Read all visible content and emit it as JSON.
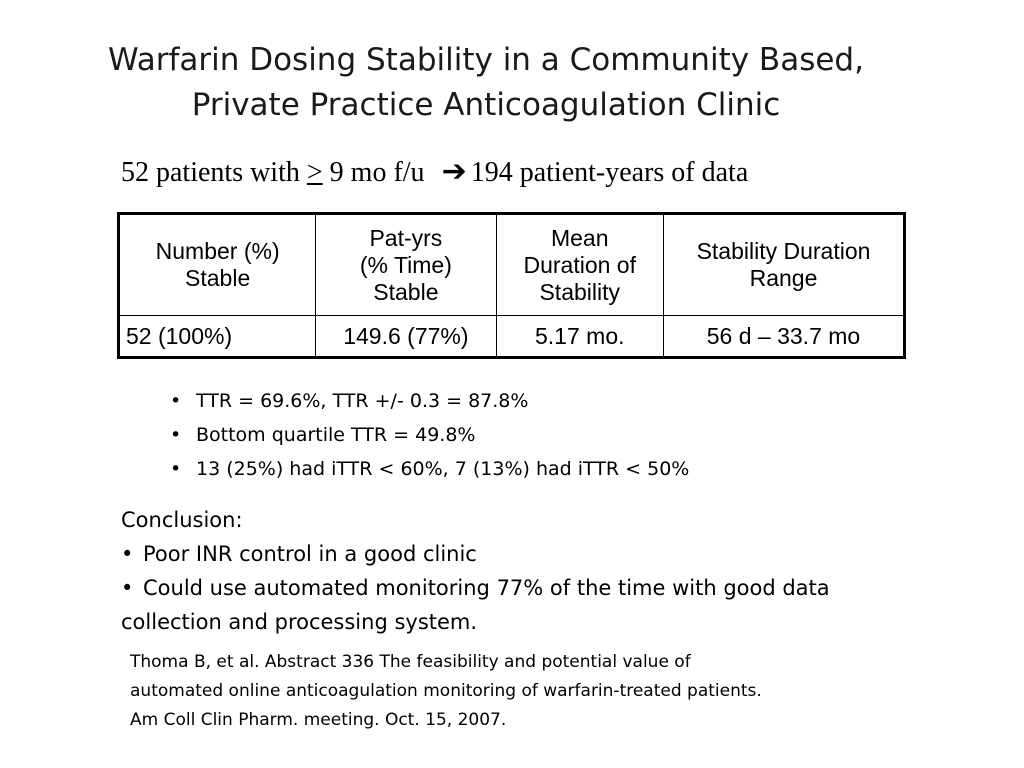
{
  "title": {
    "line1": "Warfarin Dosing Stability in a Community Based,",
    "line2": "Private Practice Anticoagulation Clinic"
  },
  "subtitle": {
    "before": "52 patients with ",
    "ge_symbol": ">",
    "after": " 9 mo f/u",
    "arrow_icon": "right-arrow-icon",
    "result": "194 patient-years of data"
  },
  "table": {
    "headers": [
      [
        "Number (%)",
        "Stable"
      ],
      [
        "Pat-yrs",
        "(% Time)",
        "Stable"
      ],
      [
        "Mean",
        "Duration of",
        "Stability"
      ],
      [
        "Stability Duration",
        "Range"
      ]
    ],
    "rows": [
      [
        "52 (100%)",
        "149.6 (77%)",
        "5.17 mo.",
        "56 d – 33.7 mo"
      ]
    ]
  },
  "bullets": [
    "TTR = 69.6%, TTR +/- 0.3 = 87.8%",
    "Bottom quartile TTR = 49.8%",
    "13 (25%) had iTTR < 60%, 7 (13%) had iTTR < 50%"
  ],
  "conclusion": {
    "heading": "Conclusion:",
    "points": [
      "Poor INR control in a good clinic",
      "Could use automated monitoring 77% of the time with good data collection and processing system."
    ]
  },
  "citation": {
    "line1": "Thoma B, et al. Abstract 336  The feasibility and potential value of",
    "line2": "automated online anticoagulation monitoring of warfarin-treated patients.",
    "line3": "Am Coll Clin Pharm. meeting. Oct. 15, 2007."
  }
}
